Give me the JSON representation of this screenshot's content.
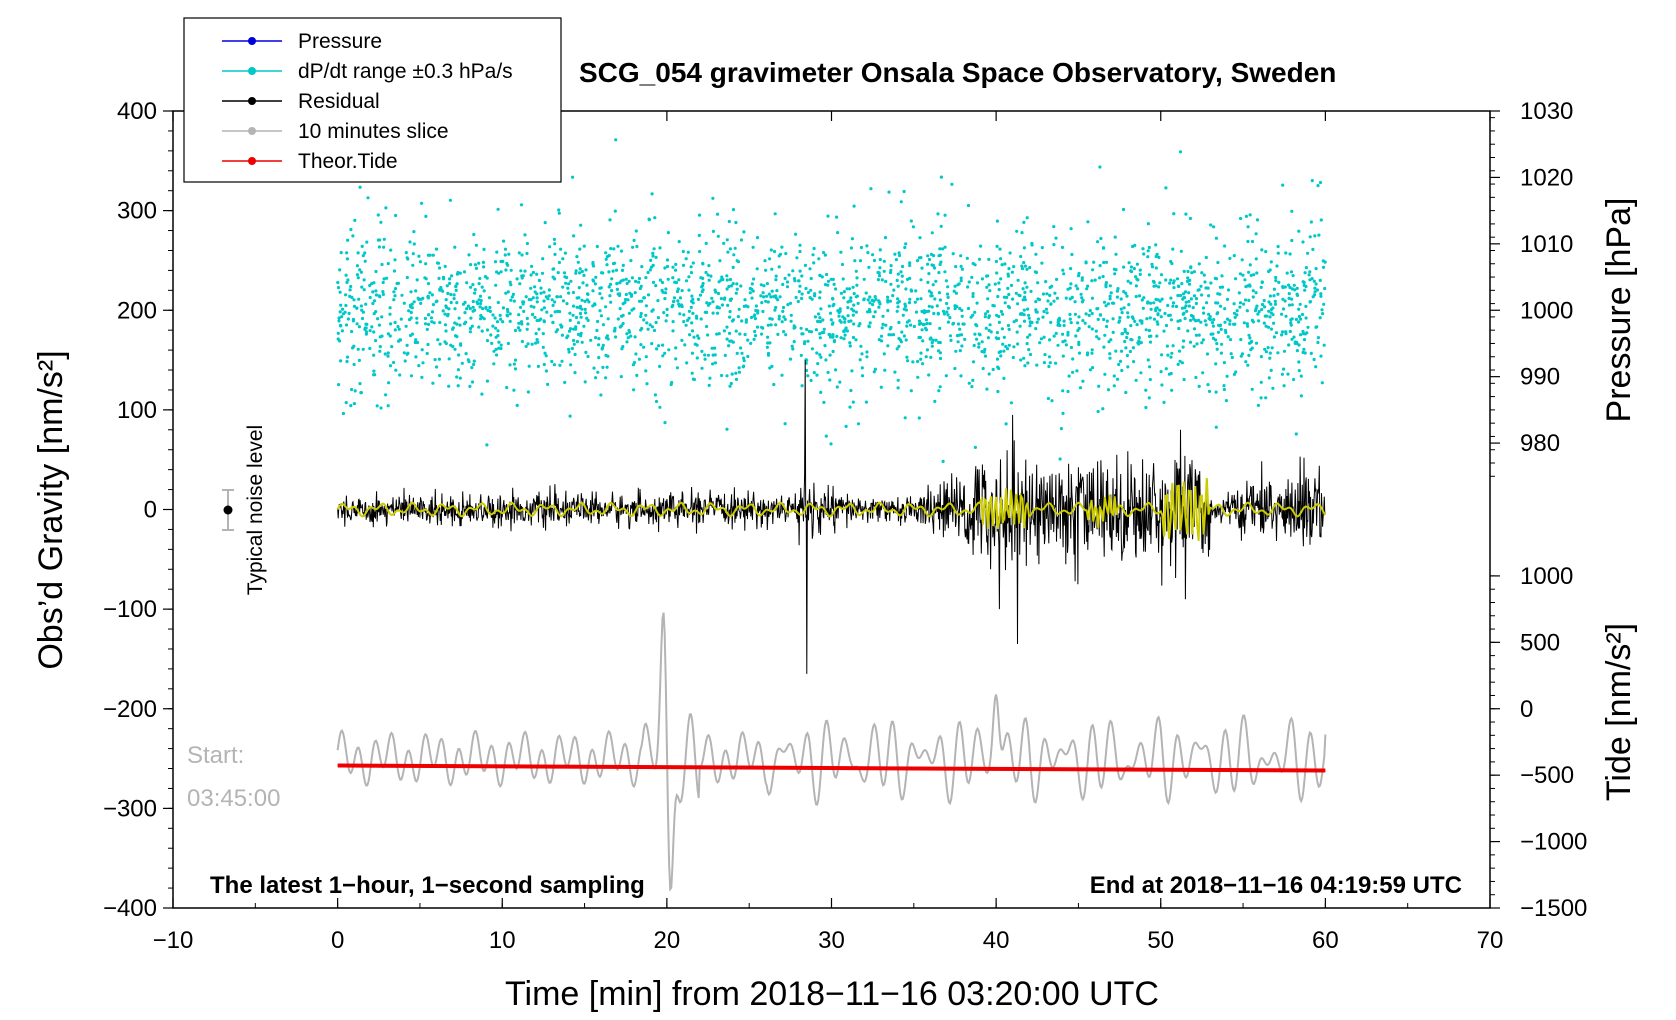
{
  "chart_data": {
    "type": "line",
    "title": "SCG_054 gravimeter Onsala Space Observatory, Sweden",
    "xlabel": "Time [min] from 2018−11−16 03:20:00 UTC",
    "ylabel_left": "Obs’d Gravity [nm/s²]",
    "ylabel_right_top": "Pressure [hPa]",
    "ylabel_right_bottom": "Tide [nm/s²]",
    "xlim": [
      -10,
      70
    ],
    "ylim": [
      -400,
      400
    ],
    "pressure_lim": [
      970,
      1030
    ],
    "tide_lim": [
      -1500,
      1500
    ],
    "x_ticks": [
      "−10",
      "0",
      "10",
      "20",
      "30",
      "40",
      "50",
      "60",
      "70"
    ],
    "y_ticks": [
      "400",
      "300",
      "200",
      "100",
      "0",
      "−100",
      "−200",
      "−300",
      "−400"
    ],
    "pressure_ticks": [
      "1030",
      "1020",
      "1010",
      "1000",
      "990",
      "980"
    ],
    "tide_ticks": [
      "1000",
      "500",
      "0",
      "−500",
      "−1000",
      "−1500"
    ],
    "legend": {
      "placement": "top-left",
      "entries": [
        {
          "label": "Pressure",
          "color": "#0000dd"
        },
        {
          "label": "dP/dt range ±0.3 hPa/s",
          "color": "#00c8c8"
        },
        {
          "label": "Residual",
          "color": "#000000"
        },
        {
          "label": "10 minutes slice",
          "color": "#b4b4b4"
        },
        {
          "label": "Theor.Tide",
          "color": "#ee0000"
        }
      ]
    },
    "noise_label": "Typical noise level",
    "start_label": "Start:",
    "start_time": "03:45:00",
    "footer_left": "The latest 1−hour, 1−second sampling",
    "footer_right": "End at 2018−11−16 04:19:59 UTC",
    "series": [
      {
        "name": "dP/dt range ±0.3 hPa/s",
        "description_points": {
          "center": 200,
          "spread": 60,
          "x_range": [
            0,
            60
          ]
        }
      },
      {
        "name": "Residual",
        "baseline": 0,
        "spikes": [
          {
            "x": 28.4,
            "y": 150
          },
          {
            "x": 28.5,
            "y": -165
          },
          {
            "x": 40.2,
            "y": -100
          },
          {
            "x": 41.3,
            "y": -135
          },
          {
            "x": 41.0,
            "y": 95
          },
          {
            "x": 51.5,
            "y": -90
          },
          {
            "x": 51.2,
            "y": 80
          }
        ]
      },
      {
        "name": "10 minutes slice",
        "baseline": -250,
        "x_range": [
          0,
          60
        ],
        "peaks": [
          {
            "x": 19.8,
            "y": -100
          },
          {
            "x": 20.2,
            "y": -410
          },
          {
            "x": 40.0,
            "y": -170
          }
        ]
      },
      {
        "name": "Theor.Tide",
        "x": [
          0,
          60
        ],
        "y": [
          -257,
          -262
        ]
      }
    ]
  },
  "colors": {
    "pressure": "#0000dd",
    "dpdt": "#00c8c8",
    "residual": "#000000",
    "slice": "#b4b4b4",
    "tide": "#ee0000",
    "smooth": "#cccc00"
  }
}
